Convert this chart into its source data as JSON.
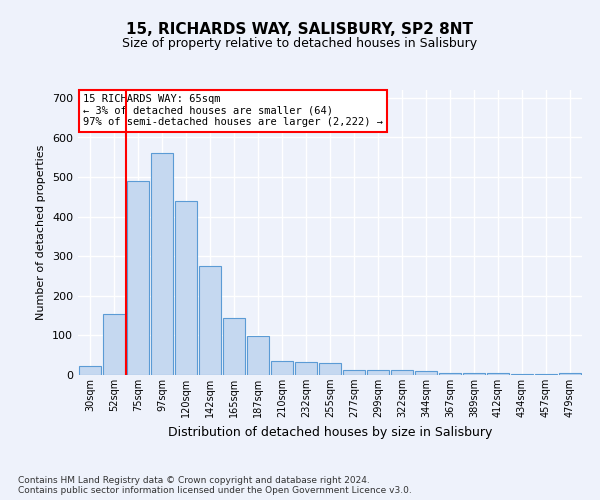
{
  "title": "15, RICHARDS WAY, SALISBURY, SP2 8NT",
  "subtitle": "Size of property relative to detached houses in Salisbury",
  "xlabel": "Distribution of detached houses by size in Salisbury",
  "ylabel": "Number of detached properties",
  "categories": [
    "30sqm",
    "52sqm",
    "75sqm",
    "97sqm",
    "120sqm",
    "142sqm",
    "165sqm",
    "187sqm",
    "210sqm",
    "232sqm",
    "255sqm",
    "277sqm",
    "299sqm",
    "322sqm",
    "344sqm",
    "367sqm",
    "389sqm",
    "412sqm",
    "434sqm",
    "457sqm",
    "479sqm"
  ],
  "values": [
    22,
    155,
    490,
    560,
    440,
    275,
    145,
    98,
    35,
    33,
    30,
    13,
    12,
    12,
    9,
    6,
    5,
    5,
    2,
    2,
    5
  ],
  "bar_color": "#c5d8f0",
  "bar_edge_color": "#5b9bd5",
  "vline_x": 1.5,
  "vline_color": "red",
  "annotation_text": "15 RICHARDS WAY: 65sqm\n← 3% of detached houses are smaller (64)\n97% of semi-detached houses are larger (2,222) →",
  "annotation_box_color": "white",
  "annotation_box_edge": "red",
  "ylim": [
    0,
    720
  ],
  "yticks": [
    0,
    100,
    200,
    300,
    400,
    500,
    600,
    700
  ],
  "footer": "Contains HM Land Registry data © Crown copyright and database right 2024.\nContains public sector information licensed under the Open Government Licence v3.0.",
  "bg_color": "#eef2fb",
  "plot_bg_color": "#eef2fb",
  "grid_color": "#ffffff",
  "title_fontsize": 11,
  "subtitle_fontsize": 9
}
